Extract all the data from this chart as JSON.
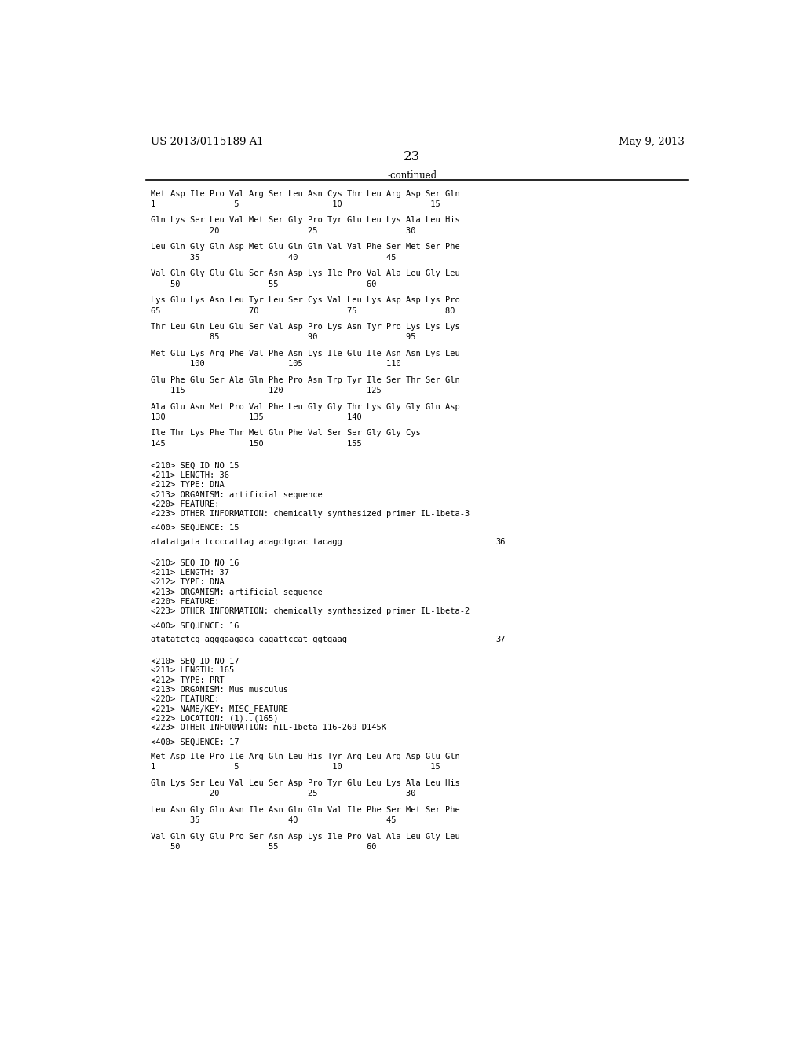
{
  "header_left": "US 2013/0115189 A1",
  "header_right": "May 9, 2013",
  "page_number": "23",
  "continued_label": "-continued",
  "background_color": "#ffffff",
  "text_color": "#000000",
  "seq14_blocks": [
    [
      "Met Asp Ile Pro Val Arg Ser Leu Asn Cys Thr Leu Arg Asp Ser Gln",
      "1                5                   10                  15"
    ],
    [
      "Gln Lys Ser Leu Val Met Ser Gly Pro Tyr Glu Leu Lys Ala Leu His",
      "            20                  25                  30"
    ],
    [
      "Leu Gln Gly Gln Asp Met Glu Gln Gln Val Val Phe Ser Met Ser Phe",
      "        35                  40                  45"
    ],
    [
      "Val Gln Gly Glu Glu Ser Asn Asp Lys Ile Pro Val Ala Leu Gly Leu",
      "    50                  55                  60"
    ],
    [
      "Lys Glu Lys Asn Leu Tyr Leu Ser Cys Val Leu Lys Asp Asp Lys Pro",
      "65                  70                  75                  80"
    ],
    [
      "Thr Leu Gln Leu Glu Ser Val Asp Pro Lys Asn Tyr Pro Lys Lys Lys",
      "            85                  90                  95"
    ],
    [
      "Met Glu Lys Arg Phe Val Phe Asn Lys Ile Glu Ile Asn Asn Lys Leu",
      "        100                 105                 110"
    ],
    [
      "Glu Phe Glu Ser Ala Gln Phe Pro Asn Trp Tyr Ile Ser Thr Ser Gln",
      "    115                 120                 125"
    ],
    [
      "Ala Glu Asn Met Pro Val Phe Leu Gly Gly Thr Lys Gly Gly Gln Asp",
      "130                 135                 140"
    ],
    [
      "Ile Thr Lys Phe Thr Met Gln Phe Val Ser Ser Gly Gly Cys",
      "145                 150                 155"
    ]
  ],
  "seq15_header": [
    "<210> SEQ ID NO 15",
    "<211> LENGTH: 36",
    "<212> TYPE: DNA",
    "<213> ORGANISM: artificial sequence",
    "<220> FEATURE:",
    "<223> OTHER INFORMATION: chemically synthesized primer IL-1beta-3"
  ],
  "seq15_label": "<400> SEQUENCE: 15",
  "seq15_data": "atatatgata tccccattag acagctgcac tacagg",
  "seq15_num": "36",
  "seq16_header": [
    "<210> SEQ ID NO 16",
    "<211> LENGTH: 37",
    "<212> TYPE: DNA",
    "<213> ORGANISM: artificial sequence",
    "<220> FEATURE:",
    "<223> OTHER INFORMATION: chemically synthesized primer IL-1beta-2"
  ],
  "seq16_label": "<400> SEQUENCE: 16",
  "seq16_data": "atatatctcg agggaagaca cagattccat ggtgaag",
  "seq16_num": "37",
  "seq17_header": [
    "<210> SEQ ID NO 17",
    "<211> LENGTH: 165",
    "<212> TYPE: PRT",
    "<213> ORGANISM: Mus musculus",
    "<220> FEATURE:",
    "<221> NAME/KEY: MISC_FEATURE",
    "<222> LOCATION: (1)..(165)",
    "<223> OTHER INFORMATION: mIL-1beta 116-269 D145K"
  ],
  "seq17_label": "<400> SEQUENCE: 17",
  "seq17_blocks": [
    [
      "Met Asp Ile Pro Ile Arg Gln Leu His Tyr Arg Leu Arg Asp Glu Gln",
      "1                5                   10                  15"
    ],
    [
      "Gln Lys Ser Leu Val Leu Ser Asp Pro Tyr Glu Leu Lys Ala Leu His",
      "            20                  25                  30"
    ],
    [
      "Leu Asn Gly Gln Asn Ile Asn Gln Gln Val Ile Phe Ser Met Ser Phe",
      "        35                  40                  45"
    ],
    [
      "Val Gln Gly Glu Pro Ser Asn Asp Lys Ile Pro Val Ala Leu Gly Leu",
      "    50                  55                  60"
    ]
  ]
}
